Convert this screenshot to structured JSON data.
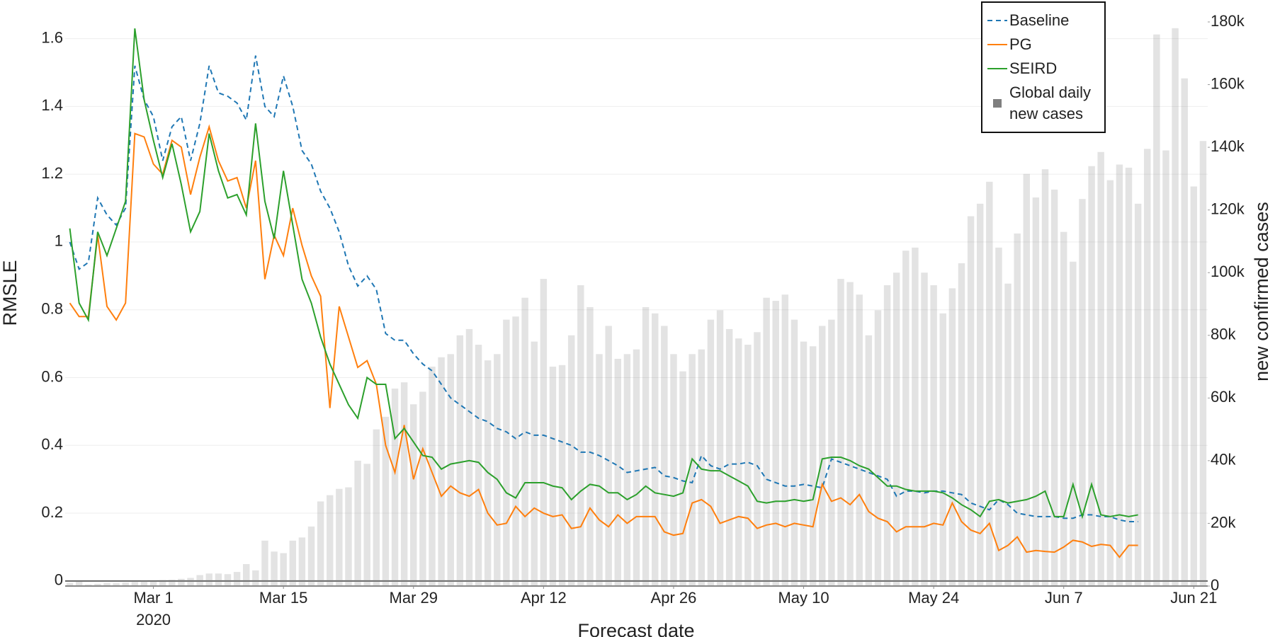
{
  "chart_data": {
    "type": "combo",
    "xlabel": "Forecast date",
    "ylabel": "RMSLE",
    "y2label": "new confirmed cases",
    "legend": "top-right",
    "grid": true,
    "xlim": [
      "2020-02-20T12:00",
      "2020-06-22T12:00"
    ],
    "xticks": [
      {
        "value": "2020-03-01",
        "label": "Mar 1",
        "year": "2020"
      },
      {
        "value": "2020-03-15",
        "label": "Mar 15"
      },
      {
        "value": "2020-03-29",
        "label": "Mar 29"
      },
      {
        "value": "2020-04-12",
        "label": "Apr 12"
      },
      {
        "value": "2020-04-26",
        "label": "Apr 26"
      },
      {
        "value": "2020-05-10",
        "label": "May 10"
      },
      {
        "value": "2020-05-24",
        "label": "May 24"
      },
      {
        "value": "2020-06-07",
        "label": "Jun 7"
      },
      {
        "value": "2020-06-21",
        "label": "Jun 21"
      }
    ],
    "ylim": [
      -0.015,
      1.714
    ],
    "yticks": [
      0,
      0.2,
      0.4,
      0.6,
      0.8,
      1,
      1.2,
      1.4,
      1.6
    ],
    "y2lim": [
      0,
      187000
    ],
    "y2ticks": [
      0,
      {
        "value": 20000,
        "label": "20k"
      },
      {
        "value": 40000,
        "label": "40k"
      },
      {
        "value": 60000,
        "label": "60k"
      },
      {
        "value": 80000,
        "label": "80k"
      },
      {
        "value": 100000,
        "label": "100k"
      },
      {
        "value": 120000,
        "label": "120k"
      },
      {
        "value": 140000,
        "label": "140k"
      },
      {
        "value": 160000,
        "label": "160k"
      },
      {
        "value": 180000,
        "label": "180k"
      }
    ],
    "x": [
      "2020-02-21",
      "2020-02-22",
      "2020-02-23",
      "2020-02-24",
      "2020-02-25",
      "2020-02-26",
      "2020-02-27",
      "2020-02-28",
      "2020-02-29",
      "2020-03-01",
      "2020-03-02",
      "2020-03-03",
      "2020-03-04",
      "2020-03-05",
      "2020-03-06",
      "2020-03-07",
      "2020-03-08",
      "2020-03-09",
      "2020-03-10",
      "2020-03-11",
      "2020-03-12",
      "2020-03-13",
      "2020-03-14",
      "2020-03-15",
      "2020-03-16",
      "2020-03-17",
      "2020-03-18",
      "2020-03-19",
      "2020-03-20",
      "2020-03-21",
      "2020-03-22",
      "2020-03-23",
      "2020-03-24",
      "2020-03-25",
      "2020-03-26",
      "2020-03-27",
      "2020-03-28",
      "2020-03-29",
      "2020-03-30",
      "2020-03-31",
      "2020-04-01",
      "2020-04-02",
      "2020-04-03",
      "2020-04-04",
      "2020-04-05",
      "2020-04-06",
      "2020-04-07",
      "2020-04-08",
      "2020-04-09",
      "2020-04-10",
      "2020-04-11",
      "2020-04-12",
      "2020-04-13",
      "2020-04-14",
      "2020-04-15",
      "2020-04-16",
      "2020-04-17",
      "2020-04-18",
      "2020-04-19",
      "2020-04-20",
      "2020-04-21",
      "2020-04-22",
      "2020-04-23",
      "2020-04-24",
      "2020-04-25",
      "2020-04-26",
      "2020-04-27",
      "2020-04-28",
      "2020-04-29",
      "2020-04-30",
      "2020-05-01",
      "2020-05-02",
      "2020-05-03",
      "2020-05-04",
      "2020-05-05",
      "2020-05-06",
      "2020-05-07",
      "2020-05-08",
      "2020-05-09",
      "2020-05-10",
      "2020-05-11",
      "2020-05-12",
      "2020-05-13",
      "2020-05-14",
      "2020-05-15",
      "2020-05-16",
      "2020-05-17",
      "2020-05-18",
      "2020-05-19",
      "2020-05-20",
      "2020-05-21",
      "2020-05-22",
      "2020-05-23",
      "2020-05-24",
      "2020-05-25",
      "2020-05-26",
      "2020-05-27",
      "2020-05-28",
      "2020-05-29",
      "2020-05-30",
      "2020-05-31",
      "2020-06-01",
      "2020-06-02",
      "2020-06-03",
      "2020-06-04",
      "2020-06-05",
      "2020-06-06",
      "2020-06-07",
      "2020-06-08",
      "2020-06-09",
      "2020-06-10",
      "2020-06-11",
      "2020-06-12",
      "2020-06-13",
      "2020-06-14",
      "2020-06-15",
      "2020-06-16",
      "2020-06-17",
      "2020-06-18",
      "2020-06-19",
      "2020-06-20",
      "2020-06-21",
      "2020-06-22"
    ],
    "series": [
      {
        "name": "Baseline",
        "type": "line",
        "line_style": "dashed",
        "color": "#1f77b4",
        "values": [
          1.0,
          0.92,
          0.94,
          1.13,
          1.08,
          1.05,
          1.1,
          1.52,
          1.42,
          1.37,
          1.24,
          1.34,
          1.37,
          1.24,
          1.35,
          1.52,
          1.44,
          1.43,
          1.41,
          1.36,
          1.55,
          1.4,
          1.37,
          1.49,
          1.4,
          1.27,
          1.23,
          1.15,
          1.1,
          1.03,
          0.93,
          0.87,
          0.9,
          0.86,
          0.73,
          0.71,
          0.71,
          0.67,
          0.64,
          0.62,
          0.58,
          0.54,
          0.52,
          0.5,
          0.48,
          0.47,
          0.45,
          0.44,
          0.42,
          0.44,
          0.43,
          0.43,
          0.42,
          0.41,
          0.4,
          0.38,
          0.38,
          0.37,
          0.355,
          0.34,
          0.32,
          0.325,
          0.33,
          0.335,
          0.31,
          0.305,
          0.295,
          0.29,
          0.37,
          0.34,
          0.33,
          0.345,
          0.345,
          0.35,
          0.34,
          0.3,
          0.29,
          0.28,
          0.28,
          0.285,
          0.28,
          0.275,
          0.36,
          0.35,
          0.34,
          0.33,
          0.32,
          0.31,
          0.3,
          0.25,
          0.265,
          0.265,
          0.26,
          0.265,
          0.265,
          0.26,
          0.255,
          0.23,
          0.22,
          0.21,
          0.24,
          0.225,
          0.2,
          0.195,
          0.19,
          0.19,
          0.19,
          0.185,
          0.185,
          0.195,
          0.195,
          0.19,
          0.19,
          0.18,
          0.175,
          0.175,
          null,
          null,
          null,
          null,
          null,
          null,
          null
        ]
      },
      {
        "name": "PG",
        "type": "line",
        "line_style": "solid",
        "color": "#ff7f0e",
        "values": [
          0.82,
          0.78,
          0.78,
          1.02,
          0.81,
          0.77,
          0.82,
          1.32,
          1.31,
          1.23,
          1.2,
          1.3,
          1.28,
          1.14,
          1.25,
          1.34,
          1.24,
          1.18,
          1.19,
          1.1,
          1.24,
          0.89,
          1.02,
          0.96,
          1.1,
          0.99,
          0.9,
          0.84,
          0.51,
          0.81,
          0.72,
          0.63,
          0.65,
          0.58,
          0.4,
          0.32,
          0.46,
          0.3,
          0.39,
          0.32,
          0.25,
          0.28,
          0.26,
          0.25,
          0.27,
          0.2,
          0.165,
          0.17,
          0.22,
          0.19,
          0.215,
          0.2,
          0.19,
          0.195,
          0.155,
          0.16,
          0.215,
          0.18,
          0.16,
          0.195,
          0.17,
          0.19,
          0.19,
          0.19,
          0.145,
          0.135,
          0.14,
          0.23,
          0.24,
          0.22,
          0.17,
          0.18,
          0.19,
          0.185,
          0.155,
          0.165,
          0.17,
          0.16,
          0.17,
          0.165,
          0.16,
          0.285,
          0.235,
          0.245,
          0.225,
          0.255,
          0.205,
          0.185,
          0.175,
          0.145,
          0.16,
          0.16,
          0.16,
          0.17,
          0.165,
          0.23,
          0.175,
          0.15,
          0.14,
          0.17,
          0.09,
          0.105,
          0.13,
          0.085,
          0.09,
          0.087,
          0.085,
          0.1,
          0.12,
          0.115,
          0.102,
          0.108,
          0.105,
          0.07,
          0.105,
          0.105,
          null,
          null,
          null,
          null,
          null,
          null,
          null
        ]
      },
      {
        "name": "SEIRD",
        "type": "line",
        "line_style": "solid",
        "color": "#2ca02c",
        "values": [
          1.04,
          0.82,
          0.77,
          1.03,
          0.96,
          1.04,
          1.12,
          1.63,
          1.42,
          1.3,
          1.19,
          1.29,
          1.17,
          1.03,
          1.09,
          1.32,
          1.21,
          1.13,
          1.14,
          1.08,
          1.35,
          1.12,
          1.01,
          1.21,
          1.05,
          0.89,
          0.82,
          0.72,
          0.64,
          0.58,
          0.52,
          0.48,
          0.6,
          0.58,
          0.58,
          0.42,
          0.45,
          0.41,
          0.37,
          0.365,
          0.33,
          0.345,
          0.35,
          0.355,
          0.35,
          0.32,
          0.3,
          0.26,
          0.245,
          0.29,
          0.29,
          0.29,
          0.28,
          0.275,
          0.24,
          0.265,
          0.285,
          0.28,
          0.26,
          0.26,
          0.24,
          0.255,
          0.28,
          0.26,
          0.255,
          0.25,
          0.26,
          0.36,
          0.33,
          0.325,
          0.325,
          0.31,
          0.295,
          0.28,
          0.235,
          0.23,
          0.235,
          0.235,
          0.24,
          0.235,
          0.24,
          0.36,
          0.365,
          0.365,
          0.355,
          0.34,
          0.33,
          0.305,
          0.28,
          0.28,
          0.27,
          0.265,
          0.265,
          0.265,
          0.26,
          0.245,
          0.225,
          0.21,
          0.19,
          0.235,
          0.24,
          0.23,
          0.235,
          0.24,
          0.25,
          0.265,
          0.19,
          0.19,
          0.285,
          0.19,
          0.285,
          0.195,
          0.19,
          0.195,
          0.19,
          0.195,
          null,
          null,
          null,
          null,
          null,
          null,
          null
        ]
      },
      {
        "name": "Global daily new cases",
        "type": "bar",
        "axis": "y2",
        "color": "#7f7f7f",
        "values": [
          1000,
          1500,
          500,
          700,
          1000,
          900,
          1100,
          1300,
          1800,
          1700,
          1900,
          2000,
          2300,
          2600,
          3500,
          4000,
          4000,
          3800,
          4500,
          7000,
          5000,
          14500,
          11000,
          10500,
          14500,
          15500,
          19000,
          27000,
          29000,
          31000,
          31500,
          40000,
          39000,
          50000,
          54000,
          63000,
          65000,
          58000,
          62000,
          70000,
          73000,
          74000,
          80000,
          82000,
          77000,
          72000,
          74000,
          85000,
          86000,
          92000,
          78000,
          98000,
          70000,
          70500,
          80000,
          96000,
          89000,
          74000,
          83000,
          72500,
          74000,
          75500,
          89000,
          87000,
          83000,
          74000,
          68500,
          74000,
          75500,
          85000,
          88000,
          82000,
          79000,
          77000,
          81000,
          92000,
          91000,
          93000,
          85000,
          78000,
          76500,
          83000,
          85000,
          98000,
          97000,
          93000,
          80000,
          88000,
          96000,
          100000,
          107000,
          108000,
          100000,
          96000,
          87000,
          95000,
          103000,
          118000,
          122000,
          129000,
          108000,
          96500,
          112500,
          131500,
          124000,
          133000,
          126500,
          113000,
          103500,
          123500,
          134000,
          138500,
          129500,
          134500,
          133500,
          122000,
          139500,
          176000,
          139000,
          178000,
          162000,
          127500,
          142000
        ]
      }
    ]
  }
}
